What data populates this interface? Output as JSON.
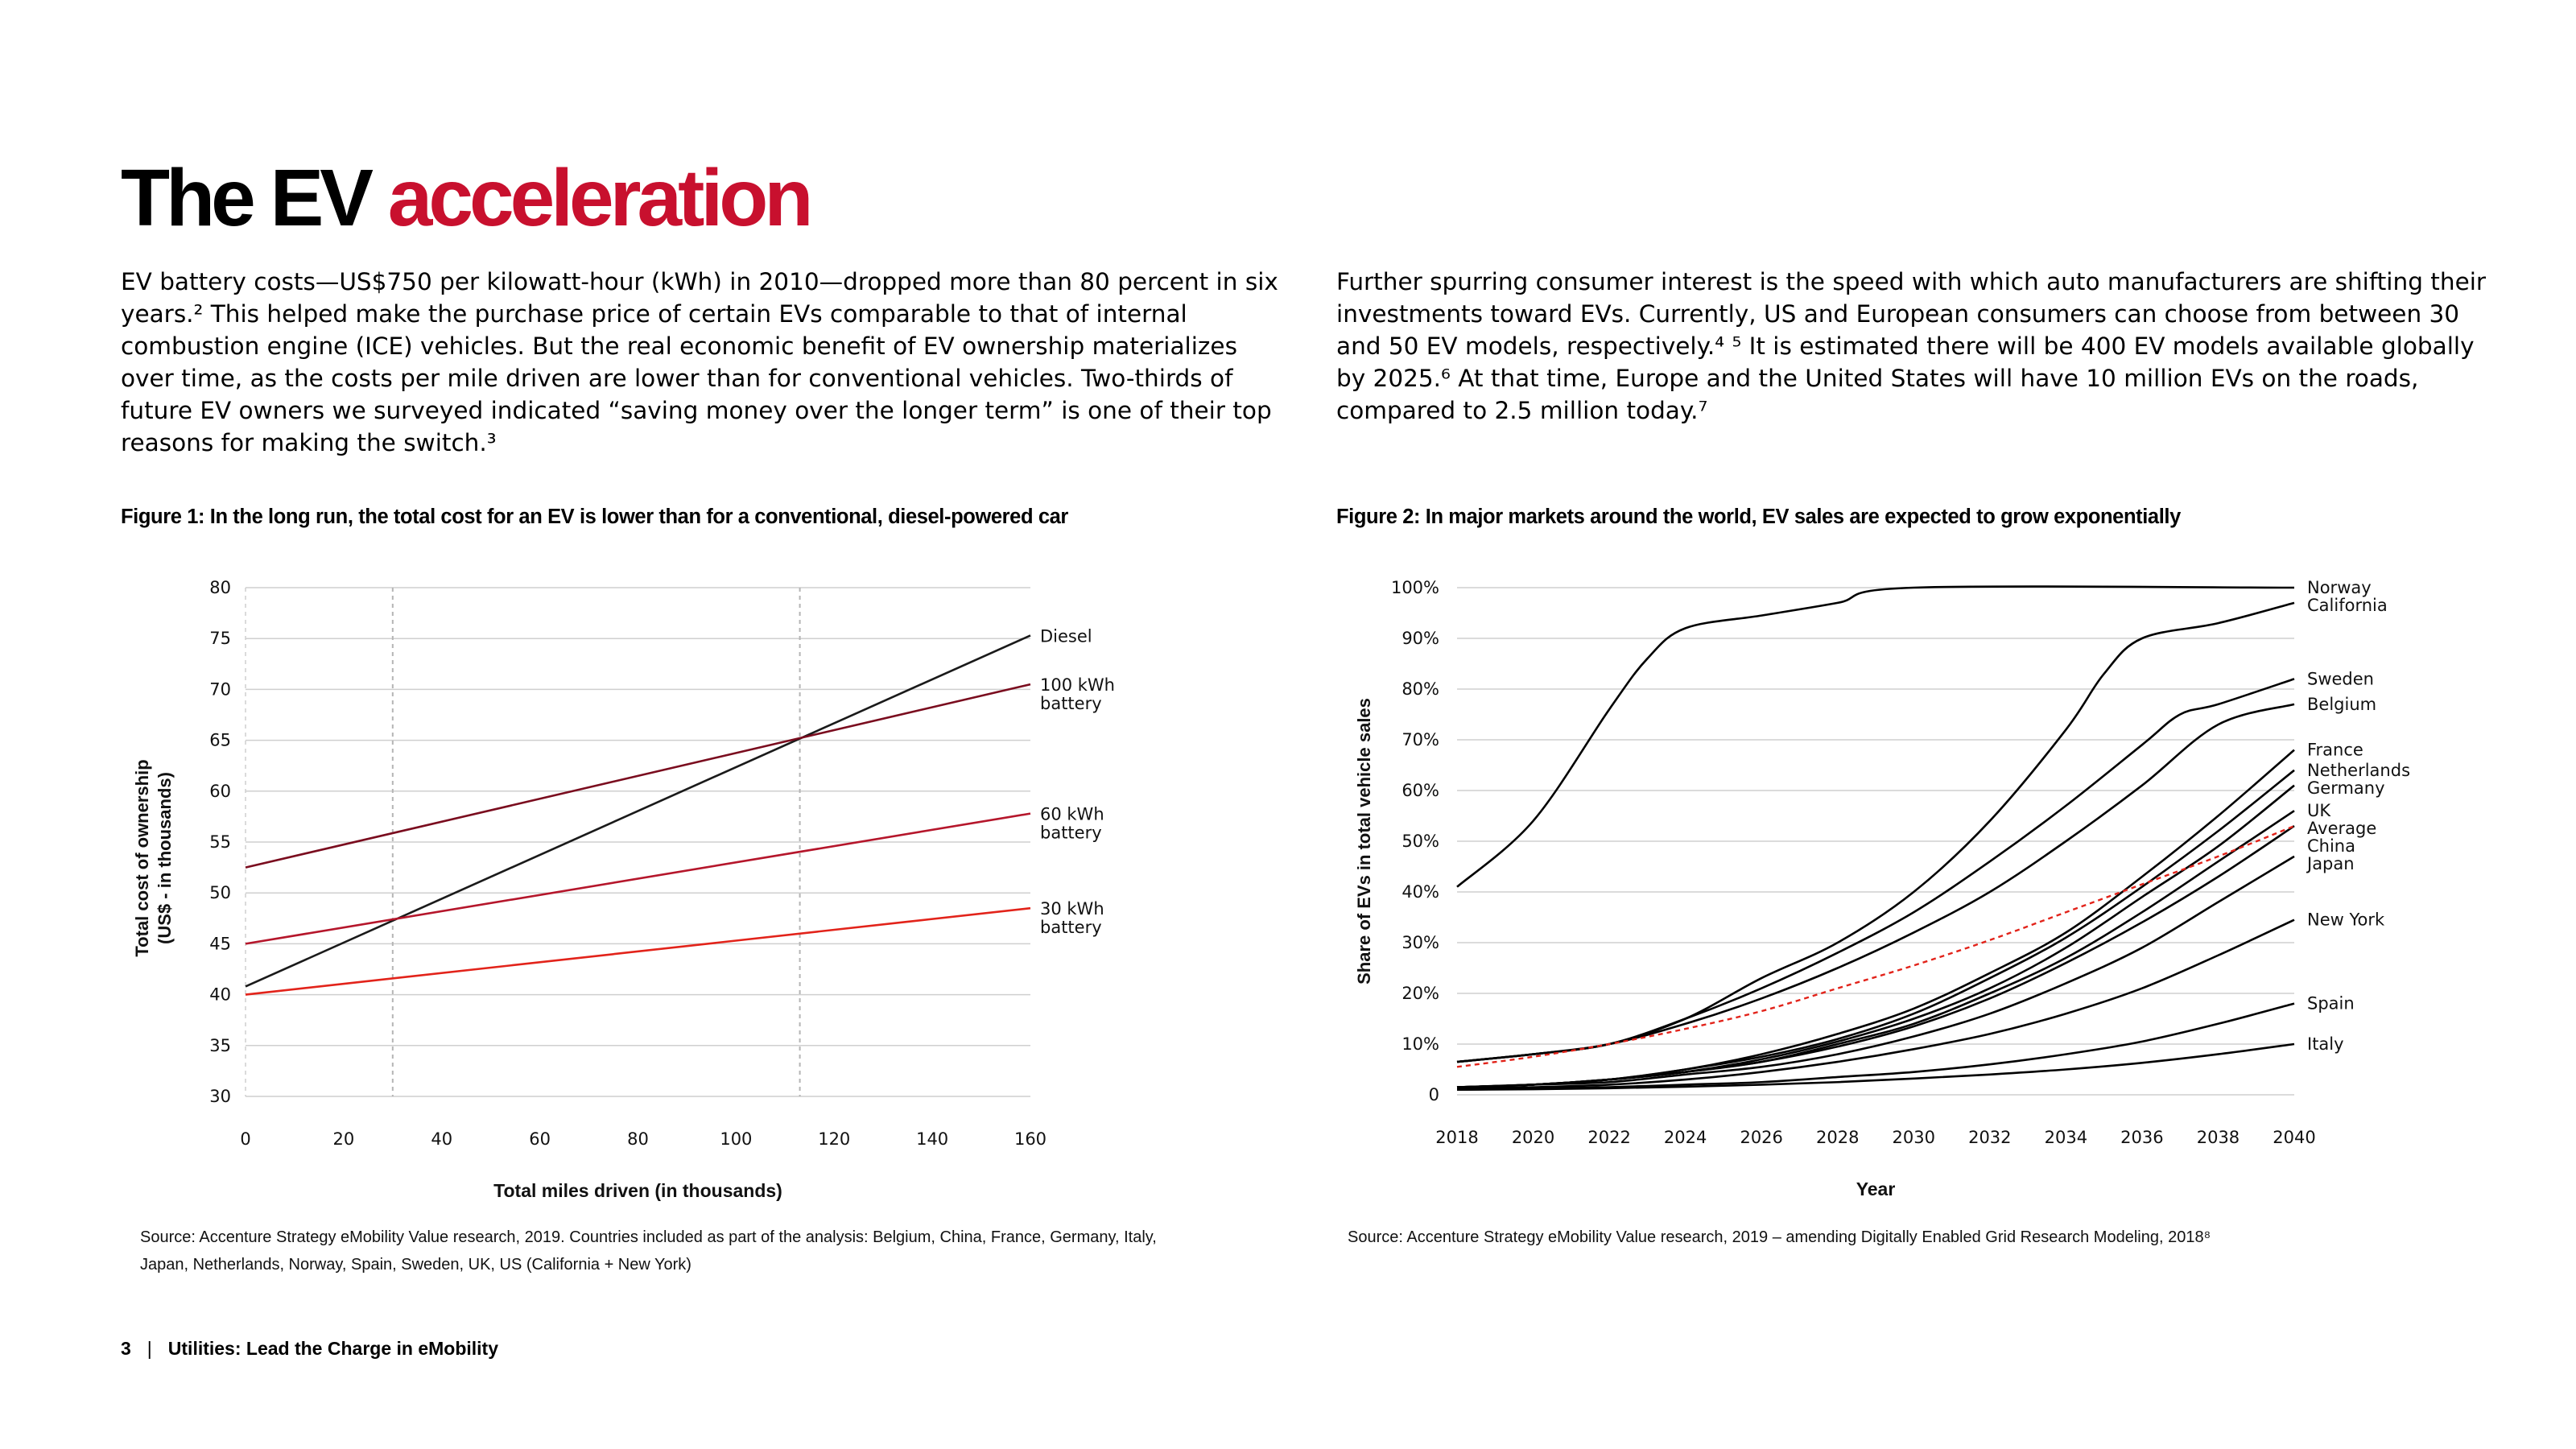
{
  "page": {
    "title_part1": "The EV",
    "title_part2": "acceleration",
    "accent_color": "#c8102e",
    "para_left": "EV battery costs—US$750 per kilowatt-hour (kWh) in 2010—dropped more than 80 percent in six years.² This helped make the purchase price of certain EVs comparable to that of internal combustion engine (ICE) vehicles. But the real economic benefit of EV ownership materializes over time, as the costs per mile driven are lower than for conventional vehicles. Two-thirds of future EV owners we surveyed indicated “saving money over the longer term” is one of their top reasons for making the switch.³",
    "para_right": "Further spurring consumer interest is the speed with which auto manufacturers are shifting their investments toward EVs. Currently, US and European consumers can choose from between 30 and 50 EV models, respectively.⁴ ⁵ It is estimated there will be 400 EV models available globally by 2025.⁶ At that time, Europe and the United States will have 10 million EVs on the roads, compared to 2.5 million today.⁷",
    "fig1_title": "Figure 1: In the long run, the total cost for an EV is lower than for a conventional, diesel-powered car",
    "fig2_title": "Figure 2: In major markets around the world, EV sales are expected to grow exponentially",
    "fig1_source": "Source: Accenture Strategy eMobility Value research, 2019. Countries included as part of the analysis: Belgium, China, France, Germany, Italy, Japan, Netherlands, Norway, Spain, Sweden, UK, US (California + New York)",
    "fig2_source": "Source: Accenture Strategy eMobility Value research, 2019 – amending Digitally Enabled Grid Research Modeling, 2018⁸",
    "footer_page": "3",
    "footer_sep": "|",
    "footer_text": "Utilities:  Lead the Charge in eMobility"
  },
  "chart_data": [
    {
      "type": "line",
      "xlabel": "Total miles driven (in thousands)",
      "ylabel_line1": "Total cost of ownership",
      "ylabel_line2": "(US$ - in thousands)",
      "xlim": [
        0,
        160
      ],
      "ylim": [
        30,
        80
      ],
      "xticks": [
        0,
        20,
        40,
        60,
        80,
        100,
        120,
        140,
        160
      ],
      "yticks": [
        30,
        35,
        40,
        45,
        50,
        55,
        60,
        65,
        70,
        75,
        80
      ],
      "grid": "horizontal",
      "reference_lines_x": [
        30,
        113
      ],
      "series": [
        {
          "name": "Diesel",
          "label_lines": [
            "Diesel"
          ],
          "color": "#1a1a1a",
          "x": [
            0,
            160
          ],
          "y": [
            40.8,
            75.3
          ]
        },
        {
          "name": "100 kWh battery",
          "label_lines": [
            "100 kWh",
            "battery"
          ],
          "color": "#7a0c1e",
          "x": [
            0,
            160
          ],
          "y": [
            52.5,
            70.5
          ]
        },
        {
          "name": "60 kWh battery",
          "label_lines": [
            "60 kWh",
            "battery"
          ],
          "color": "#b5162b",
          "x": [
            0,
            160
          ],
          "y": [
            45.0,
            57.8
          ]
        },
        {
          "name": "30 kWh battery",
          "label_lines": [
            "30 kWh",
            "battery"
          ],
          "color": "#e2231a",
          "x": [
            0,
            160
          ],
          "y": [
            40.0,
            48.5
          ]
        }
      ]
    },
    {
      "type": "line",
      "xlabel": "Year",
      "ylabel": "Share of EVs in total vehicle sales",
      "xlim": [
        2018,
        2040
      ],
      "ylim": [
        0,
        100
      ],
      "xticks": [
        2018,
        2020,
        2022,
        2024,
        2026,
        2028,
        2030,
        2032,
        2034,
        2036,
        2038,
        2040
      ],
      "yticks": [
        0,
        10,
        20,
        30,
        40,
        50,
        60,
        70,
        80,
        90,
        100
      ],
      "ytick_labels": [
        "0",
        "10%",
        "20%",
        "30%",
        "40%",
        "50%",
        "60%",
        "70%",
        "80%",
        "90%",
        "100%"
      ],
      "grid": "horizontal",
      "series": [
        {
          "name": "Norway",
          "color": "#000000",
          "x": [
            2018,
            2020,
            2022,
            2023,
            2024,
            2026,
            2028,
            2030,
            2040
          ],
          "y": [
            41,
            54,
            76,
            86,
            92,
            94.5,
            97,
            100,
            100
          ]
        },
        {
          "name": "California",
          "color": "#000000",
          "x": [
            2018,
            2020,
            2022,
            2024,
            2026,
            2028,
            2030,
            2032,
            2034,
            2035,
            2036,
            2038,
            2040
          ],
          "y": [
            6.5,
            8,
            10,
            15,
            23,
            30,
            40,
            54,
            72,
            83,
            90,
            93,
            97
          ]
        },
        {
          "name": "Sweden",
          "color": "#000000",
          "x": [
            2018,
            2020,
            2022,
            2024,
            2026,
            2028,
            2030,
            2032,
            2034,
            2036,
            2037,
            2038,
            2040
          ],
          "y": [
            6.5,
            8,
            10,
            15,
            21,
            28,
            36,
            46,
            57,
            69,
            75,
            77,
            82
          ]
        },
        {
          "name": "Belgium",
          "color": "#000000",
          "x": [
            2018,
            2020,
            2022,
            2024,
            2026,
            2028,
            2030,
            2032,
            2034,
            2036,
            2038,
            2040
          ],
          "y": [
            6.5,
            8,
            10,
            14,
            19,
            25,
            32,
            40,
            50,
            61,
            73,
            77
          ]
        },
        {
          "name": "France",
          "color": "#000000",
          "x": [
            2018,
            2020,
            2022,
            2024,
            2026,
            2028,
            2030,
            2032,
            2034,
            2036,
            2038,
            2040
          ],
          "y": [
            1.5,
            2,
            3,
            5,
            8,
            12,
            17,
            24,
            32,
            43,
            55,
            68
          ]
        },
        {
          "name": "Netherlands",
          "color": "#000000",
          "x": [
            2018,
            2020,
            2022,
            2024,
            2026,
            2028,
            2030,
            2032,
            2034,
            2036,
            2038,
            2040
          ],
          "y": [
            1.5,
            2,
            3,
            5,
            7.5,
            11,
            16,
            23,
            31,
            41,
            52,
            64
          ]
        },
        {
          "name": "Germany",
          "color": "#000000",
          "x": [
            2018,
            2020,
            2022,
            2024,
            2026,
            2028,
            2030,
            2032,
            2034,
            2036,
            2038,
            2040
          ],
          "y": [
            1.5,
            2,
            3,
            4.5,
            7,
            10.5,
            15,
            21,
            29,
            39,
            49,
            61
          ]
        },
        {
          "name": "UK",
          "color": "#000000",
          "x": [
            2018,
            2020,
            2022,
            2024,
            2026,
            2028,
            2030,
            2032,
            2034,
            2036,
            2038,
            2040
          ],
          "y": [
            1.5,
            2,
            3,
            4.5,
            6.5,
            10,
            14,
            20,
            27,
            36,
            46,
            56
          ]
        },
        {
          "name": "Average",
          "color": "#e2231a",
          "dashed": true,
          "x": [
            2018,
            2020,
            2022,
            2024,
            2026,
            2028,
            2030,
            2032,
            2034,
            2036,
            2038,
            2040
          ],
          "y": [
            5.5,
            7.5,
            10,
            13,
            16.5,
            21,
            25.5,
            30.5,
            36,
            41.5,
            47,
            53
          ]
        },
        {
          "name": "China",
          "color": "#000000",
          "x": [
            2018,
            2020,
            2022,
            2024,
            2026,
            2028,
            2030,
            2032,
            2034,
            2036,
            2038,
            2040
          ],
          "y": [
            1.5,
            2,
            3,
            4.5,
            6.5,
            9.5,
            13.5,
            19,
            26,
            34,
            43,
            53
          ]
        },
        {
          "name": "Japan",
          "color": "#000000",
          "x": [
            2018,
            2020,
            2022,
            2024,
            2026,
            2028,
            2030,
            2032,
            2034,
            2036,
            2038,
            2040
          ],
          "y": [
            1.5,
            2,
            2.5,
            4,
            5.5,
            8,
            11.5,
            16,
            22,
            29,
            38,
            47
          ]
        },
        {
          "name": "New York",
          "color": "#000000",
          "x": [
            2018,
            2020,
            2022,
            2024,
            2026,
            2028,
            2030,
            2032,
            2034,
            2036,
            2038,
            2040
          ],
          "y": [
            1.2,
            1.5,
            2,
            3,
            4.5,
            6.5,
            9,
            12,
            16,
            21,
            27.5,
            34.5
          ]
        },
        {
          "name": "Spain",
          "color": "#000000",
          "x": [
            2018,
            2020,
            2022,
            2024,
            2026,
            2028,
            2030,
            2032,
            2034,
            2036,
            2038,
            2040
          ],
          "y": [
            1,
            1.2,
            1.5,
            2,
            2.5,
            3.5,
            4.5,
            6,
            8,
            10.5,
            14,
            18
          ]
        },
        {
          "name": "Italy",
          "color": "#000000",
          "x": [
            2018,
            2020,
            2022,
            2024,
            2026,
            2028,
            2030,
            2032,
            2034,
            2036,
            2038,
            2040
          ],
          "y": [
            1,
            1.1,
            1.3,
            1.6,
            2,
            2.5,
            3.2,
            4,
            5,
            6.3,
            8,
            10
          ]
        }
      ]
    }
  ]
}
